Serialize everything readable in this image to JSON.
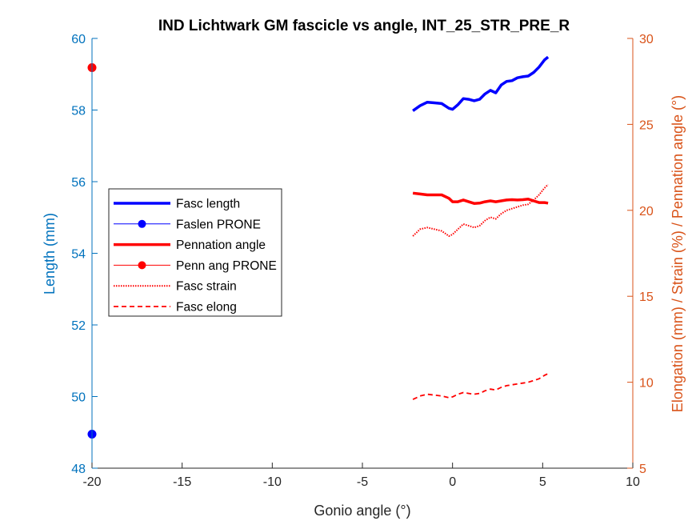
{
  "chart_data": {
    "type": "line",
    "title": "IND Lichtwark GM fascicle vs angle, INT_25_STR_PRE_R",
    "xlabel": "Gonio angle (°)",
    "ylabel_left": "Length (mm)",
    "ylabel_right": "Elongation (mm) / Strain (%) / Pennation angle (°)",
    "xlim": [
      -20,
      10
    ],
    "ylim_left": [
      48,
      60
    ],
    "ylim_right": [
      5,
      30
    ],
    "xticks": [
      "-20",
      "-15",
      "-10",
      "-5",
      "0",
      "5",
      "10"
    ],
    "yticks_left": [
      "48",
      "50",
      "52",
      "54",
      "56",
      "58",
      "60"
    ],
    "yticks_right": [
      "5",
      "10",
      "15",
      "20",
      "25",
      "30"
    ],
    "colors": {
      "left_axis": "#0072BD",
      "right_axis": "#D95319",
      "blue": "#0000FF",
      "red": "#FF0000"
    },
    "legend_position": "middle-left",
    "legend": [
      "Fasc length",
      "Faslen PRONE",
      "Pennation angle",
      "Penn ang PRONE",
      "Fasc strain",
      "Fasc elong"
    ],
    "series": [
      {
        "name": "Fasc length",
        "axis": "left",
        "color": "#0000FF",
        "style": "solid-thick",
        "x": [
          -2.2,
          -1.8,
          -1.4,
          -1.0,
          -0.6,
          -0.2,
          0.0,
          0.3,
          0.6,
          0.9,
          1.2,
          1.5,
          1.8,
          2.1,
          2.4,
          2.7,
          3.0,
          3.3,
          3.6,
          3.9,
          4.2,
          4.5,
          4.8,
          5.1,
          5.3
        ],
        "y": [
          57.98,
          58.12,
          58.22,
          58.2,
          58.18,
          58.05,
          58.02,
          58.15,
          58.32,
          58.3,
          58.26,
          58.3,
          58.45,
          58.55,
          58.48,
          58.7,
          58.8,
          58.82,
          58.9,
          58.93,
          58.95,
          59.05,
          59.2,
          59.4,
          59.48
        ]
      },
      {
        "name": "Faslen PRONE",
        "axis": "left",
        "color": "#0000FF",
        "style": "marker",
        "x": [
          -20
        ],
        "y": [
          48.95
        ]
      },
      {
        "name": "Pennation angle",
        "axis": "right",
        "color": "#FF0000",
        "style": "solid-thick",
        "x": [
          -2.2,
          -1.8,
          -1.4,
          -1.0,
          -0.6,
          -0.2,
          0.0,
          0.3,
          0.6,
          0.9,
          1.2,
          1.5,
          1.8,
          2.1,
          2.4,
          2.7,
          3.0,
          3.3,
          3.6,
          3.9,
          4.2,
          4.5,
          4.8,
          5.1,
          5.3
        ],
        "y": [
          21.0,
          20.95,
          20.9,
          20.9,
          20.9,
          20.7,
          20.5,
          20.5,
          20.6,
          20.5,
          20.4,
          20.42,
          20.5,
          20.55,
          20.5,
          20.55,
          20.6,
          20.62,
          20.6,
          20.62,
          20.65,
          20.55,
          20.45,
          20.45,
          20.42
        ]
      },
      {
        "name": "Penn ang PRONE",
        "axis": "right",
        "color": "#FF0000",
        "style": "marker",
        "x": [
          -20
        ],
        "y": [
          28.3
        ]
      },
      {
        "name": "Fasc strain",
        "axis": "right",
        "color": "#FF0000",
        "style": "dotted",
        "x": [
          -2.2,
          -1.8,
          -1.4,
          -1.0,
          -0.6,
          -0.2,
          0.0,
          0.3,
          0.6,
          0.9,
          1.2,
          1.5,
          1.8,
          2.1,
          2.4,
          2.7,
          3.0,
          3.3,
          3.6,
          3.9,
          4.2,
          4.5,
          4.8,
          5.1,
          5.3
        ],
        "y": [
          18.5,
          18.9,
          19.0,
          18.9,
          18.8,
          18.5,
          18.6,
          18.9,
          19.2,
          19.1,
          19.0,
          19.1,
          19.4,
          19.6,
          19.5,
          19.8,
          20.0,
          20.1,
          20.2,
          20.3,
          20.35,
          20.6,
          20.9,
          21.3,
          21.5
        ]
      },
      {
        "name": "Fasc elong",
        "axis": "right",
        "color": "#FF0000",
        "style": "dashed",
        "x": [
          -2.2,
          -1.8,
          -1.4,
          -1.0,
          -0.6,
          -0.2,
          0.0,
          0.3,
          0.6,
          0.9,
          1.2,
          1.5,
          1.8,
          2.1,
          2.4,
          2.7,
          3.0,
          3.3,
          3.6,
          3.9,
          4.2,
          4.5,
          4.8,
          5.1,
          5.3
        ],
        "y": [
          9.0,
          9.2,
          9.3,
          9.25,
          9.2,
          9.1,
          9.15,
          9.3,
          9.4,
          9.35,
          9.3,
          9.35,
          9.5,
          9.6,
          9.55,
          9.7,
          9.8,
          9.85,
          9.9,
          9.95,
          10.0,
          10.1,
          10.2,
          10.4,
          10.5
        ]
      }
    ]
  }
}
